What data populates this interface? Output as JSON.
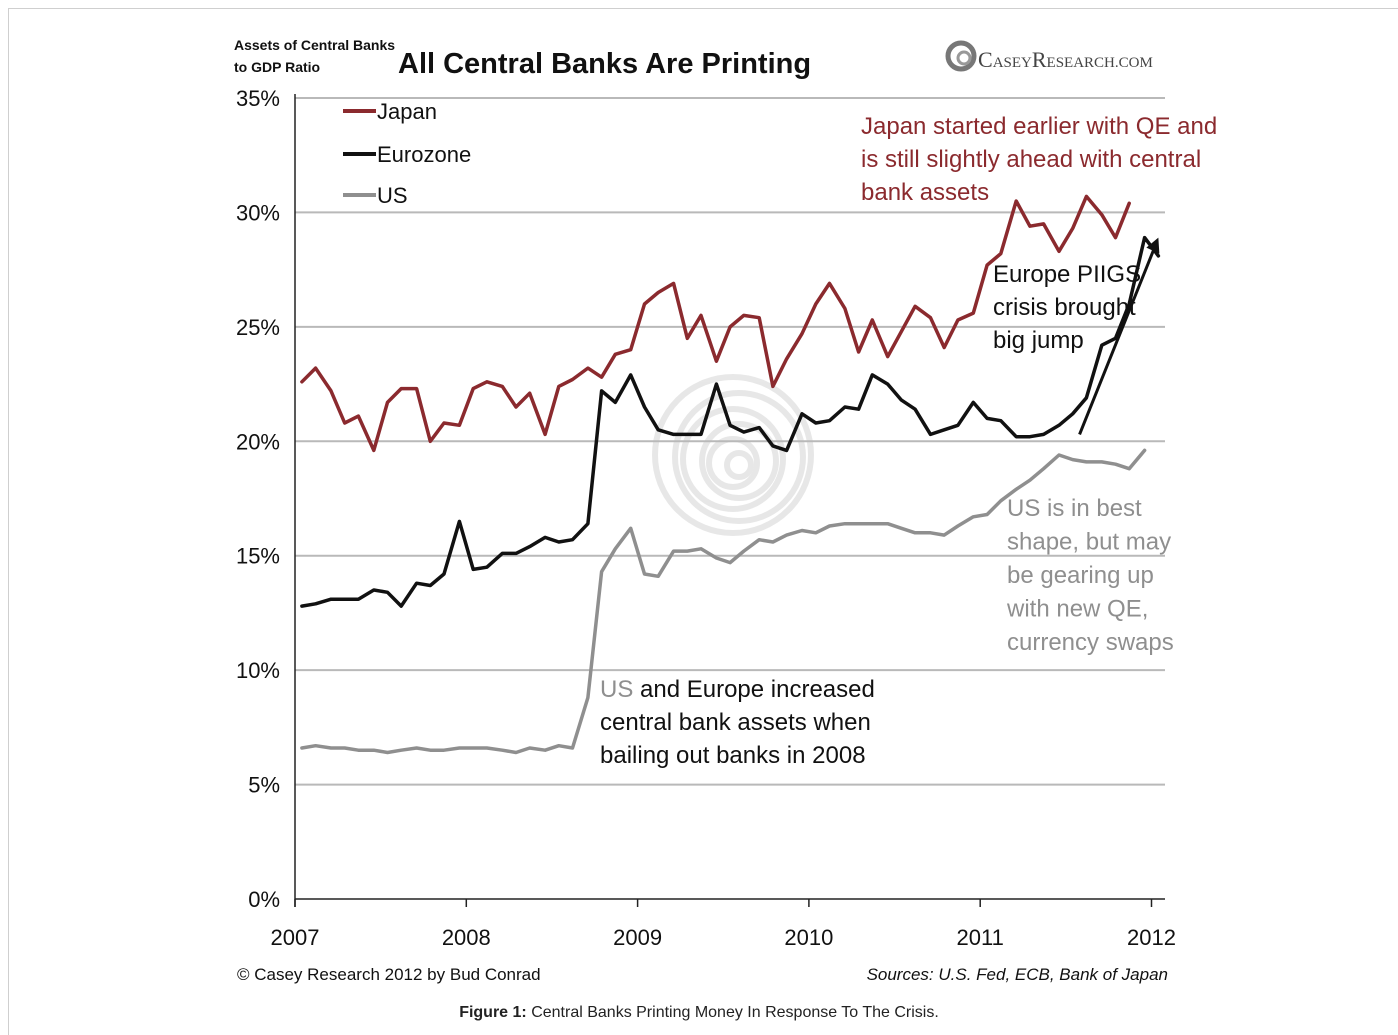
{
  "chart_data": {
    "type": "line",
    "title": "All Central Banks Are Printing",
    "ylabel": "Assets of Central Banks to GDP Ratio",
    "ylabel_lines": [
      "Assets of Central Banks",
      "to GDP Ratio"
    ],
    "xlabel": "",
    "ylim": [
      0,
      35
    ],
    "xlim": [
      2007,
      2012
    ],
    "yticks": [
      {
        "value": 0,
        "label": "0%"
      },
      {
        "value": 5,
        "label": "5%"
      },
      {
        "value": 10,
        "label": "10%"
      },
      {
        "value": 15,
        "label": "15%"
      },
      {
        "value": 20,
        "label": "20%"
      },
      {
        "value": 25,
        "label": "25%"
      },
      {
        "value": 30,
        "label": "30%"
      },
      {
        "value": 35,
        "label": "35%"
      }
    ],
    "xticks": [
      {
        "value": 2007,
        "label": "2007"
      },
      {
        "value": 2008,
        "label": "2008"
      },
      {
        "value": 2009,
        "label": "2009"
      },
      {
        "value": 2010,
        "label": "2010"
      },
      {
        "value": 2011,
        "label": "2011"
      },
      {
        "value": 2012,
        "label": "2012"
      }
    ],
    "grid": "horizontal",
    "legend_position": "top-left",
    "series": [
      {
        "name": "Japan",
        "color": "#8b2a2e",
        "points": [
          [
            2007.04,
            22.6
          ],
          [
            2007.12,
            23.2
          ],
          [
            2007.21,
            22.2
          ],
          [
            2007.29,
            20.8
          ],
          [
            2007.37,
            21.1
          ],
          [
            2007.46,
            19.6
          ],
          [
            2007.54,
            21.7
          ],
          [
            2007.62,
            22.3
          ],
          [
            2007.71,
            22.3
          ],
          [
            2007.79,
            20.0
          ],
          [
            2007.87,
            20.8
          ],
          [
            2007.96,
            20.7
          ],
          [
            2008.04,
            22.3
          ],
          [
            2008.12,
            22.6
          ],
          [
            2008.21,
            22.4
          ],
          [
            2008.29,
            21.5
          ],
          [
            2008.37,
            22.1
          ],
          [
            2008.46,
            20.3
          ],
          [
            2008.54,
            22.4
          ],
          [
            2008.62,
            22.7
          ],
          [
            2008.71,
            23.2
          ],
          [
            2008.79,
            22.8
          ],
          [
            2008.87,
            23.8
          ],
          [
            2008.96,
            24.0
          ],
          [
            2009.04,
            26.0
          ],
          [
            2009.12,
            26.5
          ],
          [
            2009.21,
            26.9
          ],
          [
            2009.29,
            24.5
          ],
          [
            2009.37,
            25.5
          ],
          [
            2009.46,
            23.5
          ],
          [
            2009.54,
            25.0
          ],
          [
            2009.62,
            25.5
          ],
          [
            2009.71,
            25.4
          ],
          [
            2009.79,
            22.4
          ],
          [
            2009.87,
            23.6
          ],
          [
            2009.96,
            24.7
          ],
          [
            2010.04,
            26.0
          ],
          [
            2010.12,
            26.9
          ],
          [
            2010.21,
            25.8
          ],
          [
            2010.29,
            23.9
          ],
          [
            2010.37,
            25.3
          ],
          [
            2010.46,
            23.7
          ],
          [
            2010.54,
            24.8
          ],
          [
            2010.62,
            25.9
          ],
          [
            2010.71,
            25.4
          ],
          [
            2010.79,
            24.1
          ],
          [
            2010.87,
            25.3
          ],
          [
            2010.96,
            25.6
          ],
          [
            2011.04,
            27.7
          ],
          [
            2011.12,
            28.2
          ],
          [
            2011.21,
            30.5
          ],
          [
            2011.29,
            29.4
          ],
          [
            2011.37,
            29.5
          ],
          [
            2011.46,
            28.3
          ],
          [
            2011.54,
            29.3
          ],
          [
            2011.62,
            30.7
          ],
          [
            2011.71,
            29.9
          ],
          [
            2011.79,
            28.9
          ],
          [
            2011.87,
            30.4
          ]
        ]
      },
      {
        "name": "Eurozone",
        "color": "#111111",
        "points": [
          [
            2007.04,
            12.8
          ],
          [
            2007.12,
            12.9
          ],
          [
            2007.21,
            13.1
          ],
          [
            2007.29,
            13.1
          ],
          [
            2007.37,
            13.1
          ],
          [
            2007.46,
            13.5
          ],
          [
            2007.54,
            13.4
          ],
          [
            2007.62,
            12.8
          ],
          [
            2007.71,
            13.8
          ],
          [
            2007.79,
            13.7
          ],
          [
            2007.87,
            14.2
          ],
          [
            2007.96,
            16.5
          ],
          [
            2008.04,
            14.4
          ],
          [
            2008.12,
            14.5
          ],
          [
            2008.21,
            15.1
          ],
          [
            2008.29,
            15.1
          ],
          [
            2008.37,
            15.4
          ],
          [
            2008.46,
            15.8
          ],
          [
            2008.54,
            15.6
          ],
          [
            2008.62,
            15.7
          ],
          [
            2008.71,
            16.4
          ],
          [
            2008.79,
            22.2
          ],
          [
            2008.87,
            21.7
          ],
          [
            2008.96,
            22.9
          ],
          [
            2009.04,
            21.5
          ],
          [
            2009.12,
            20.5
          ],
          [
            2009.21,
            20.3
          ],
          [
            2009.29,
            20.3
          ],
          [
            2009.37,
            20.3
          ],
          [
            2009.46,
            22.5
          ],
          [
            2009.54,
            20.7
          ],
          [
            2009.62,
            20.4
          ],
          [
            2009.71,
            20.6
          ],
          [
            2009.79,
            19.8
          ],
          [
            2009.87,
            19.6
          ],
          [
            2009.96,
            21.2
          ],
          [
            2010.04,
            20.8
          ],
          [
            2010.12,
            20.9
          ],
          [
            2010.21,
            21.5
          ],
          [
            2010.29,
            21.4
          ],
          [
            2010.37,
            22.9
          ],
          [
            2010.46,
            22.5
          ],
          [
            2010.54,
            21.8
          ],
          [
            2010.62,
            21.4
          ],
          [
            2010.71,
            20.3
          ],
          [
            2010.79,
            20.5
          ],
          [
            2010.87,
            20.7
          ],
          [
            2010.96,
            21.7
          ],
          [
            2011.04,
            21.0
          ],
          [
            2011.12,
            20.9
          ],
          [
            2011.21,
            20.2
          ],
          [
            2011.29,
            20.2
          ],
          [
            2011.37,
            20.3
          ],
          [
            2011.46,
            20.7
          ],
          [
            2011.54,
            21.2
          ],
          [
            2011.62,
            21.9
          ],
          [
            2011.71,
            24.2
          ],
          [
            2011.79,
            24.5
          ],
          [
            2011.87,
            26.0
          ],
          [
            2011.96,
            28.9
          ],
          [
            2012.04,
            28.1
          ]
        ]
      },
      {
        "name": "US",
        "color": "#8f8f8f",
        "points": [
          [
            2007.04,
            6.6
          ],
          [
            2007.12,
            6.7
          ],
          [
            2007.21,
            6.6
          ],
          [
            2007.29,
            6.6
          ],
          [
            2007.37,
            6.5
          ],
          [
            2007.46,
            6.5
          ],
          [
            2007.54,
            6.4
          ],
          [
            2007.62,
            6.5
          ],
          [
            2007.71,
            6.6
          ],
          [
            2007.79,
            6.5
          ],
          [
            2007.87,
            6.5
          ],
          [
            2007.96,
            6.6
          ],
          [
            2008.04,
            6.6
          ],
          [
            2008.12,
            6.6
          ],
          [
            2008.21,
            6.5
          ],
          [
            2008.29,
            6.4
          ],
          [
            2008.37,
            6.6
          ],
          [
            2008.46,
            6.5
          ],
          [
            2008.54,
            6.7
          ],
          [
            2008.62,
            6.6
          ],
          [
            2008.71,
            8.8
          ],
          [
            2008.79,
            14.3
          ],
          [
            2008.87,
            15.3
          ],
          [
            2008.96,
            16.2
          ],
          [
            2009.04,
            14.2
          ],
          [
            2009.12,
            14.1
          ],
          [
            2009.21,
            15.2
          ],
          [
            2009.29,
            15.2
          ],
          [
            2009.37,
            15.3
          ],
          [
            2009.46,
            14.9
          ],
          [
            2009.54,
            14.7
          ],
          [
            2009.62,
            15.2
          ],
          [
            2009.71,
            15.7
          ],
          [
            2009.79,
            15.6
          ],
          [
            2009.87,
            15.9
          ],
          [
            2009.96,
            16.1
          ],
          [
            2010.04,
            16.0
          ],
          [
            2010.12,
            16.3
          ],
          [
            2010.21,
            16.4
          ],
          [
            2010.29,
            16.4
          ],
          [
            2010.37,
            16.4
          ],
          [
            2010.46,
            16.4
          ],
          [
            2010.54,
            16.2
          ],
          [
            2010.62,
            16.0
          ],
          [
            2010.71,
            16.0
          ],
          [
            2010.79,
            15.9
          ],
          [
            2010.87,
            16.3
          ],
          [
            2010.96,
            16.7
          ],
          [
            2011.04,
            16.8
          ],
          [
            2011.12,
            17.4
          ],
          [
            2011.21,
            17.9
          ],
          [
            2011.29,
            18.3
          ],
          [
            2011.37,
            18.8
          ],
          [
            2011.46,
            19.4
          ],
          [
            2011.54,
            19.2
          ],
          [
            2011.62,
            19.1
          ],
          [
            2011.71,
            19.1
          ],
          [
            2011.79,
            19.0
          ],
          [
            2011.87,
            18.8
          ],
          [
            2011.96,
            19.6
          ]
        ]
      }
    ],
    "arrow": {
      "from": [
        2011.58,
        20.3
      ],
      "to": [
        2012.04,
        28.9
      ],
      "color": "#111111"
    },
    "annotations": [
      {
        "id": "japan-note",
        "color": "#8b2a2e",
        "lines": [
          "Japan started earlier with QE and",
          "is still slightly ahead with central",
          "bank assets"
        ]
      },
      {
        "id": "europe-note",
        "color": "#111111",
        "lines": [
          "Europe PIIGS",
          "crisis brought",
          "big jump"
        ]
      },
      {
        "id": "us-note",
        "color": "#8f8f8f",
        "lines": [
          "US is in best",
          "shape, but may",
          "be gearing up",
          "with new QE,",
          "currency swaps"
        ]
      },
      {
        "id": "bailout-note",
        "color": "#111111",
        "prefix": "US",
        "prefix_color": "#8f8f8f",
        "lines": [
          " and Europe increased",
          "central bank assets when",
          "bailing out banks in 2008"
        ]
      }
    ],
    "logo_text": {
      "c": "C",
      "asey": "ASEY",
      "r": "R",
      "esearch": "ESEARCH",
      "com": ".COM"
    },
    "copyright": "© Casey Research 2012 by Bud Conrad",
    "sources": "Sources: U.S. Fed, ECB, Bank of Japan"
  },
  "caption": {
    "label": "Figure 1:",
    "text": " Central Banks Printing Money In Response To The Crisis."
  }
}
